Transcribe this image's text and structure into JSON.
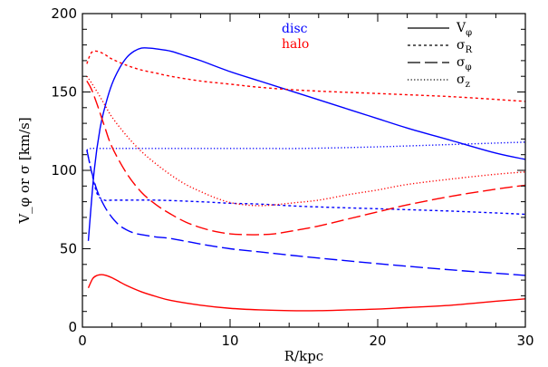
{
  "chart_data": {
    "type": "line",
    "xlabel": "R/kpc",
    "ylabel": "V_φ or σ [km/s]",
    "xlim": [
      0,
      30
    ],
    "ylim": [
      0,
      200
    ],
    "xticks": [
      0,
      10,
      20,
      30
    ],
    "yticks": [
      0,
      50,
      100,
      150,
      200
    ],
    "grid": false,
    "legend_placement": "top-right",
    "colors": {
      "disc": "#0000ff",
      "halo": "#ff0000"
    },
    "population_legend": [
      {
        "label": "disc",
        "color": "#0000ff"
      },
      {
        "label": "halo",
        "color": "#ff0000"
      }
    ],
    "style_legend": [
      {
        "label": "V",
        "sub": "φ",
        "style": "solid"
      },
      {
        "label": "σ",
        "sub": "R",
        "style": "dashed"
      },
      {
        "label": "σ",
        "sub": "φ",
        "style": "longdash"
      },
      {
        "label": "σ",
        "sub": "z",
        "style": "dotted"
      }
    ],
    "series": [
      {
        "population": "disc",
        "quantity": "V_phi",
        "style": "solid",
        "x": [
          0.4,
          0.8,
          1.2,
          1.6,
          2,
          2.5,
          3,
          3.5,
          4,
          4.5,
          5,
          6,
          7,
          8,
          10,
          12,
          15,
          18,
          20,
          22,
          25,
          28,
          30
        ],
        "y": [
          55,
          100,
          127,
          143,
          155,
          165,
          172,
          176,
          178,
          178,
          177.5,
          176,
          173,
          170,
          163,
          157,
          148,
          139,
          133,
          127,
          119,
          111,
          107
        ]
      },
      {
        "population": "disc",
        "quantity": "sigma_R",
        "style": "dashed",
        "x": [
          0.3,
          0.6,
          1,
          1.5,
          2,
          3,
          5,
          8,
          10,
          12,
          15,
          20,
          25,
          30
        ],
        "y": [
          113,
          100,
          85,
          81,
          81,
          81,
          81,
          80,
          79,
          78.5,
          77,
          75.5,
          74,
          72
        ]
      },
      {
        "population": "disc",
        "quantity": "sigma_phi",
        "style": "longdash",
        "x": [
          0.3,
          0.6,
          1,
          1.5,
          2,
          2.5,
          3,
          3.5,
          4,
          5,
          6,
          8,
          10,
          12,
          15,
          20,
          25,
          30
        ],
        "y": [
          113,
          100,
          87,
          77,
          70,
          65,
          62,
          60,
          59,
          57.5,
          56.5,
          53,
          50,
          48,
          45,
          40.5,
          36.5,
          33
        ]
      },
      {
        "population": "disc",
        "quantity": "sigma_z",
        "style": "dotted",
        "x": [
          0.3,
          0.6,
          1,
          1.5,
          2,
          3,
          5,
          8,
          10,
          12,
          15,
          20,
          25,
          30
        ],
        "y": [
          113,
          114,
          114,
          114,
          114,
          114,
          114,
          114,
          114,
          114,
          114,
          115,
          116.5,
          118
        ]
      },
      {
        "population": "halo",
        "quantity": "V_phi",
        "style": "solid",
        "x": [
          0.4,
          0.7,
          1,
          1.3,
          1.6,
          2,
          2.5,
          3,
          4,
          5,
          6,
          8,
          10,
          12,
          14,
          16,
          18,
          20,
          22,
          25,
          28,
          30
        ],
        "y": [
          25,
          31,
          33,
          33.5,
          33,
          31.5,
          29,
          26.5,
          22.5,
          19.5,
          17,
          14,
          12,
          11,
          10.5,
          10.5,
          11,
          11.5,
          12.5,
          14,
          16.5,
          18
        ]
      },
      {
        "population": "halo",
        "quantity": "sigma_R",
        "style": "dashed",
        "x": [
          0.3,
          0.6,
          1,
          1.5,
          2,
          3,
          4,
          5,
          6,
          8,
          10,
          12,
          15,
          20,
          25,
          30
        ],
        "y": [
          168,
          175,
          176,
          174,
          171,
          167,
          164,
          162,
          160,
          157,
          155,
          153,
          151,
          149,
          147,
          144
        ]
      },
      {
        "population": "halo",
        "quantity": "sigma_phi",
        "style": "longdash",
        "x": [
          0.3,
          0.6,
          1,
          1.5,
          2,
          3,
          4,
          5,
          6,
          7,
          8,
          9,
          10,
          11,
          12,
          13,
          14,
          16,
          18,
          20,
          22,
          25,
          28,
          30
        ],
        "y": [
          157,
          152,
          142,
          128,
          115,
          98,
          86,
          78,
          72,
          67,
          63.5,
          61,
          59.5,
          59,
          59,
          59.5,
          61,
          64.5,
          69,
          73.5,
          78,
          83.5,
          88,
          90.5
        ]
      },
      {
        "population": "halo",
        "quantity": "sigma_z",
        "style": "dotted",
        "x": [
          0.3,
          0.6,
          1,
          1.5,
          2,
          3,
          4,
          5,
          6,
          7,
          8,
          9,
          10,
          11,
          12,
          13,
          14,
          16,
          18,
          20,
          22,
          25,
          28,
          30
        ],
        "y": [
          160,
          156,
          150,
          142,
          134,
          122,
          112,
          104,
          97,
          91,
          86.5,
          82.5,
          79.5,
          78,
          77.5,
          78,
          79,
          81,
          84.5,
          87.5,
          91,
          94.5,
          97.5,
          99
        ]
      }
    ]
  }
}
